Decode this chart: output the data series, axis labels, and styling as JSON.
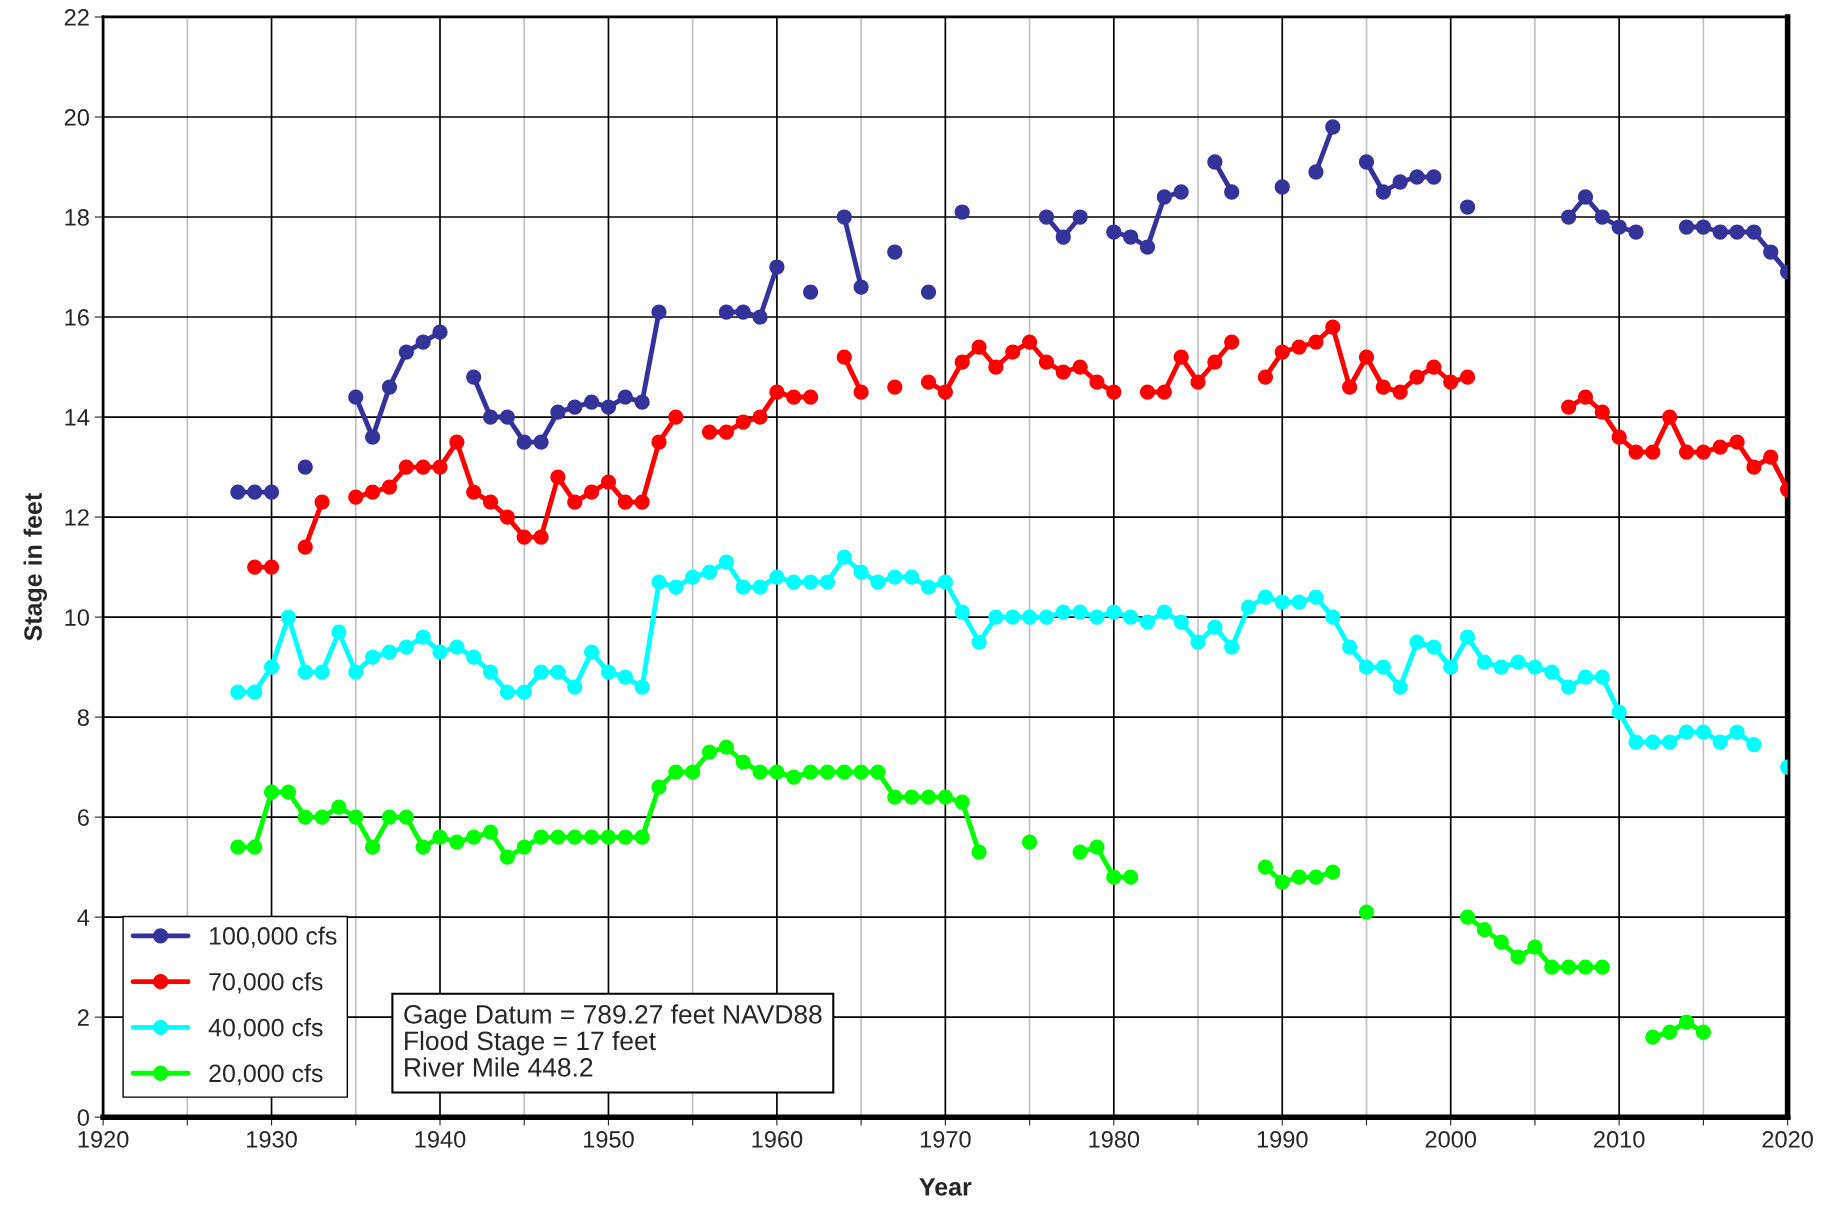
{
  "chart_data": {
    "type": "line",
    "xlabel": "Year",
    "ylabel": "Stage in feet",
    "x": [
      1928,
      1929,
      1930,
      1931,
      1932,
      1933,
      1934,
      1935,
      1936,
      1937,
      1938,
      1939,
      1940,
      1941,
      1942,
      1943,
      1944,
      1945,
      1946,
      1947,
      1948,
      1949,
      1950,
      1951,
      1952,
      1953,
      1954,
      1955,
      1956,
      1957,
      1958,
      1959,
      1960,
      1961,
      1962,
      1963,
      1964,
      1965,
      1966,
      1967,
      1968,
      1969,
      1970,
      1971,
      1972,
      1973,
      1974,
      1975,
      1976,
      1977,
      1978,
      1979,
      1980,
      1981,
      1982,
      1983,
      1984,
      1985,
      1986,
      1987,
      1988,
      1989,
      1990,
      1991,
      1992,
      1993,
      1994,
      1995,
      1996,
      1997,
      1998,
      1999,
      2000,
      2001,
      2002,
      2003,
      2004,
      2005,
      2006,
      2007,
      2008,
      2009,
      2010,
      2011,
      2012,
      2013,
      2014,
      2015,
      2016,
      2017,
      2018,
      2019,
      2020
    ],
    "series": [
      {
        "name": "100,000 cfs",
        "color": "#333399",
        "values": [
          12.5,
          12.5,
          12.5,
          null,
          13.0,
          null,
          null,
          14.4,
          13.6,
          14.6,
          15.3,
          15.5,
          15.7,
          null,
          14.8,
          14.0,
          14.0,
          13.5,
          13.5,
          14.1,
          14.2,
          14.3,
          14.2,
          14.4,
          14.3,
          16.1,
          null,
          null,
          null,
          16.1,
          16.1,
          16.0,
          17.0,
          null,
          16.5,
          null,
          18.0,
          16.6,
          null,
          17.3,
          null,
          16.5,
          null,
          18.1,
          null,
          null,
          null,
          null,
          18.0,
          17.6,
          18.0,
          null,
          17.7,
          17.6,
          17.4,
          18.4,
          18.5,
          null,
          19.1,
          18.5,
          null,
          null,
          18.6,
          null,
          18.9,
          19.8,
          null,
          19.1,
          18.5,
          18.7,
          18.8,
          18.8,
          null,
          18.2,
          null,
          null,
          null,
          null,
          null,
          18.0,
          18.4,
          18.0,
          17.8,
          17.7,
          null,
          null,
          17.8,
          17.8,
          17.7,
          17.7,
          17.7,
          17.3,
          16.9
        ]
      },
      {
        "name": "70,000 cfs",
        "color": "#ff0000",
        "values": [
          null,
          11.0,
          11.0,
          null,
          11.4,
          12.3,
          null,
          12.4,
          12.5,
          12.6,
          13.0,
          13.0,
          13.0,
          13.5,
          12.5,
          12.3,
          12.0,
          11.6,
          11.6,
          12.8,
          12.3,
          12.5,
          12.7,
          12.3,
          12.3,
          13.5,
          14.0,
          null,
          13.7,
          13.7,
          13.9,
          14.0,
          14.5,
          14.4,
          14.4,
          null,
          15.2,
          14.5,
          null,
          14.6,
          null,
          14.7,
          14.5,
          15.1,
          15.4,
          15.0,
          15.3,
          15.5,
          15.1,
          14.9,
          15.0,
          14.7,
          14.5,
          null,
          14.5,
          14.5,
          15.2,
          14.7,
          15.1,
          15.5,
          null,
          14.8,
          15.3,
          15.4,
          15.5,
          15.8,
          14.6,
          15.2,
          14.6,
          14.5,
          14.8,
          15.0,
          14.7,
          14.8,
          null,
          null,
          null,
          null,
          null,
          14.2,
          14.4,
          14.1,
          13.6,
          13.3,
          13.3,
          14.0,
          13.3,
          13.3,
          13.4,
          13.5,
          13.0,
          13.2,
          12.55
        ]
      },
      {
        "name": "40,000 cfs",
        "color": "#00ffff",
        "values": [
          8.5,
          8.5,
          9.0,
          10.0,
          8.9,
          8.9,
          9.7,
          8.9,
          9.2,
          9.3,
          9.4,
          9.6,
          9.3,
          9.4,
          9.2,
          8.9,
          8.5,
          8.5,
          8.9,
          8.9,
          8.6,
          9.3,
          8.9,
          8.8,
          8.6,
          10.7,
          10.6,
          10.8,
          10.9,
          11.1,
          10.6,
          10.6,
          10.8,
          10.7,
          10.7,
          10.7,
          11.2,
          10.9,
          10.7,
          10.8,
          10.8,
          10.6,
          10.7,
          10.1,
          9.5,
          10.0,
          10.0,
          10.0,
          10.0,
          10.1,
          10.1,
          10.0,
          10.1,
          10.0,
          9.9,
          10.1,
          9.9,
          9.5,
          9.8,
          9.4,
          10.2,
          10.4,
          10.3,
          10.3,
          10.4,
          10.0,
          9.4,
          9.0,
          9.0,
          8.6,
          9.5,
          9.4,
          9.0,
          9.6,
          9.1,
          9.0,
          9.1,
          9.0,
          8.9,
          8.6,
          8.8,
          8.8,
          8.1,
          7.5,
          7.5,
          7.5,
          7.7,
          7.7,
          7.5,
          7.7,
          7.45,
          null,
          7.0
        ]
      },
      {
        "name": "20,000 cfs",
        "color": "#00ff00",
        "values": [
          5.4,
          5.4,
          6.5,
          6.5,
          6.0,
          6.0,
          6.2,
          6.0,
          5.4,
          6.0,
          6.0,
          5.4,
          5.6,
          5.5,
          5.6,
          5.7,
          5.2,
          5.4,
          5.6,
          5.6,
          5.6,
          5.6,
          5.6,
          5.6,
          5.6,
          6.6,
          6.9,
          6.9,
          7.3,
          7.4,
          7.1,
          6.9,
          6.9,
          6.8,
          6.9,
          6.9,
          6.9,
          6.9,
          6.9,
          6.4,
          6.4,
          6.4,
          6.4,
          6.3,
          5.3,
          null,
          null,
          5.5,
          null,
          null,
          5.3,
          5.4,
          4.8,
          4.8,
          null,
          null,
          null,
          null,
          null,
          null,
          null,
          5.0,
          4.7,
          4.8,
          4.8,
          4.9,
          null,
          4.1,
          null,
          null,
          null,
          null,
          null,
          4.0,
          3.75,
          3.5,
          3.2,
          3.4,
          3.0,
          3.0,
          3.0,
          3.0,
          null,
          null,
          1.6,
          1.7,
          1.9,
          1.7,
          null,
          null,
          null,
          null,
          null
        ]
      }
    ],
    "xlim": [
      1920,
      2020
    ],
    "ylim": [
      0,
      22
    ],
    "xticks": [
      1920,
      {
        "value": 1925,
        "label": null
      },
      1930,
      {
        "value": 1935,
        "label": null
      },
      1940,
      {
        "value": 1945,
        "label": null
      },
      1950,
      {
        "value": 1955,
        "label": null
      },
      1960,
      {
        "value": 1965,
        "label": null
      },
      1970,
      {
        "value": 1975,
        "label": null
      },
      1980,
      {
        "value": 1985,
        "label": null
      },
      1990,
      {
        "value": 1995,
        "label": null
      },
      2000,
      {
        "value": 2005,
        "label": null
      },
      2010,
      {
        "value": 2015,
        "label": null
      },
      2020
    ],
    "yticks": [
      0,
      2,
      4,
      6,
      8,
      10,
      12,
      14,
      16,
      18,
      20,
      22
    ],
    "grid": true,
    "legend": "bottom left",
    "marker": "circle",
    "line_style": "solid",
    "annotations": [
      "Gage Datum = 789.27 feet NAVD88\nFlood Stage = 17 feet\nRiver Mile 448.2"
    ]
  }
}
